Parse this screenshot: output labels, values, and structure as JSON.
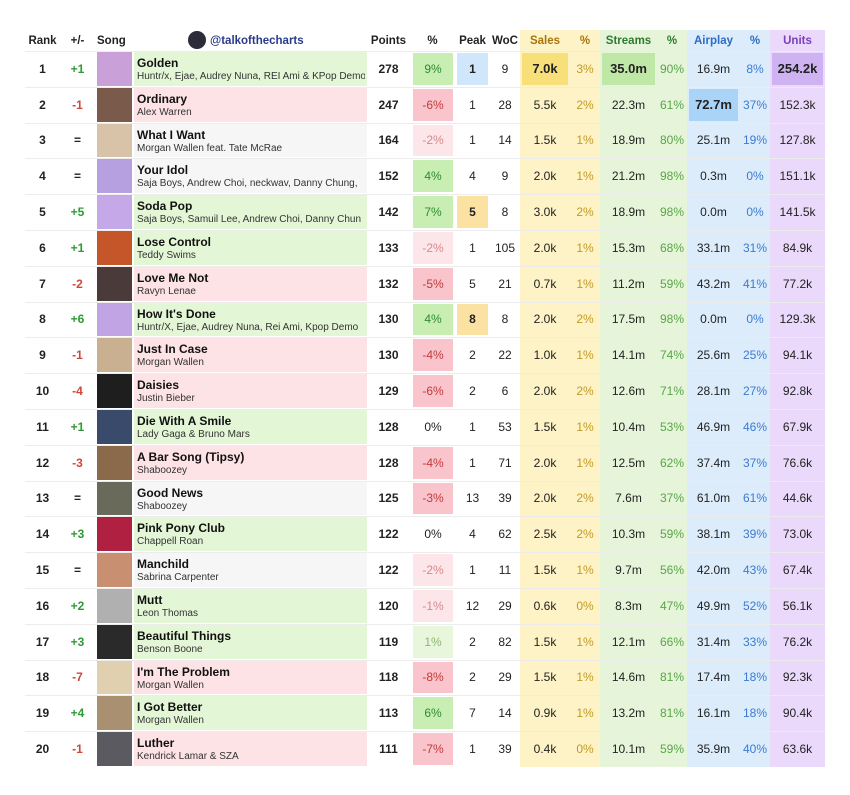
{
  "header": {
    "columns": [
      "Rank",
      "+/-",
      "Song",
      "Points",
      "%",
      "Peak",
      "WoC",
      "Sales",
      "%",
      "Streams",
      "%",
      "Airplay",
      "%",
      "Units"
    ],
    "handle": "@talkofthecharts"
  },
  "rows": [
    [
      1,
      "+1",
      "Golden",
      "Huntr/x, Ejae, Audrey Nuna, REI Ami & KPop Demo",
      278,
      "9%",
      1,
      9,
      "7.0k",
      "3%",
      "35.0m",
      "90%",
      "16.9m",
      "8%",
      "254.2k"
    ],
    [
      2,
      "-1",
      "Ordinary",
      "Alex Warren",
      247,
      "-6%",
      1,
      28,
      "5.5k",
      "2%",
      "22.3m",
      "61%",
      "72.7m",
      "37%",
      "152.3k"
    ],
    [
      3,
      "=",
      "What I Want",
      "Morgan Wallen feat. Tate McRae",
      164,
      "-2%",
      1,
      14,
      "1.5k",
      "1%",
      "18.9m",
      "80%",
      "25.1m",
      "19%",
      "127.8k"
    ],
    [
      4,
      "=",
      "Your Idol",
      "Saja Boys, Andrew Choi, neckwav, Danny Chung,",
      152,
      "4%",
      4,
      9,
      "2.0k",
      "1%",
      "21.2m",
      "98%",
      "0.3m",
      "0%",
      "151.1k"
    ],
    [
      5,
      "+5",
      "Soda Pop",
      "Saja Boys, Samuil Lee, Andrew Choi, Danny Chun",
      142,
      "7%",
      5,
      8,
      "3.0k",
      "2%",
      "18.9m",
      "98%",
      "0.0m",
      "0%",
      "141.5k"
    ],
    [
      6,
      "+1",
      "Lose Control",
      "Teddy Swims",
      133,
      "-2%",
      1,
      105,
      "2.0k",
      "1%",
      "15.3m",
      "68%",
      "33.1m",
      "31%",
      "84.9k"
    ],
    [
      7,
      "-2",
      "Love Me Not",
      "Ravyn Lenae",
      132,
      "-5%",
      5,
      21,
      "0.7k",
      "1%",
      "11.2m",
      "59%",
      "43.2m",
      "41%",
      "77.2k"
    ],
    [
      8,
      "+6",
      "How It's Done",
      "Huntr/X, Ejae, Audrey Nuna, Rei Ami, Kpop Demo",
      130,
      "4%",
      8,
      8,
      "2.0k",
      "2%",
      "17.5m",
      "98%",
      "0.0m",
      "0%",
      "129.3k"
    ],
    [
      9,
      "-1",
      "Just In Case",
      "Morgan Wallen",
      130,
      "-4%",
      2,
      22,
      "1.0k",
      "1%",
      "14.1m",
      "74%",
      "25.6m",
      "25%",
      "94.1k"
    ],
    [
      10,
      "-4",
      "Daisies",
      "Justin Bieber",
      129,
      "-6%",
      2,
      6,
      "2.0k",
      "2%",
      "12.6m",
      "71%",
      "28.1m",
      "27%",
      "92.8k"
    ],
    [
      11,
      "+1",
      "Die With A Smile",
      "Lady Gaga & Bruno Mars",
      128,
      "0%",
      1,
      53,
      "1.5k",
      "1%",
      "10.4m",
      "53%",
      "46.9m",
      "46%",
      "67.9k"
    ],
    [
      12,
      "-3",
      "A Bar Song (Tipsy)",
      "Shaboozey",
      128,
      "-4%",
      1,
      71,
      "2.0k",
      "1%",
      "12.5m",
      "62%",
      "37.4m",
      "37%",
      "76.6k"
    ],
    [
      13,
      "=",
      "Good News",
      "Shaboozey",
      125,
      "-3%",
      13,
      39,
      "2.0k",
      "2%",
      "7.6m",
      "37%",
      "61.0m",
      "61%",
      "44.6k"
    ],
    [
      14,
      "+3",
      "Pink Pony Club",
      "Chappell Roan",
      122,
      "0%",
      4,
      62,
      "2.5k",
      "2%",
      "10.3m",
      "59%",
      "38.1m",
      "39%",
      "73.0k"
    ],
    [
      15,
      "=",
      "Manchild",
      "Sabrina Carpenter",
      122,
      "-2%",
      1,
      11,
      "1.5k",
      "1%",
      "9.7m",
      "56%",
      "42.0m",
      "43%",
      "67.4k"
    ],
    [
      16,
      "+2",
      "Mutt",
      "Leon Thomas",
      120,
      "-1%",
      12,
      29,
      "0.6k",
      "0%",
      "8.3m",
      "47%",
      "49.9m",
      "52%",
      "56.1k"
    ],
    [
      17,
      "+3",
      "Beautiful Things",
      "Benson Boone",
      119,
      "1%",
      2,
      82,
      "1.5k",
      "1%",
      "12.1m",
      "66%",
      "31.4m",
      "33%",
      "76.2k"
    ],
    [
      18,
      "-7",
      "I'm The Problem",
      "Morgan Wallen",
      118,
      "-8%",
      2,
      29,
      "1.5k",
      "1%",
      "14.6m",
      "81%",
      "17.4m",
      "18%",
      "92.3k"
    ],
    [
      19,
      "+4",
      "I Got Better",
      "Morgan Wallen",
      113,
      "6%",
      7,
      14,
      "0.9k",
      "1%",
      "13.2m",
      "81%",
      "16.1m",
      "18%",
      "90.4k"
    ],
    [
      20,
      "-1",
      "Luther",
      "Kendrick Lamar & SZA",
      111,
      "-7%",
      1,
      39,
      "0.4k",
      "0%",
      "10.1m",
      "59%",
      "35.9m",
      "40%",
      "63.6k"
    ]
  ]
}
